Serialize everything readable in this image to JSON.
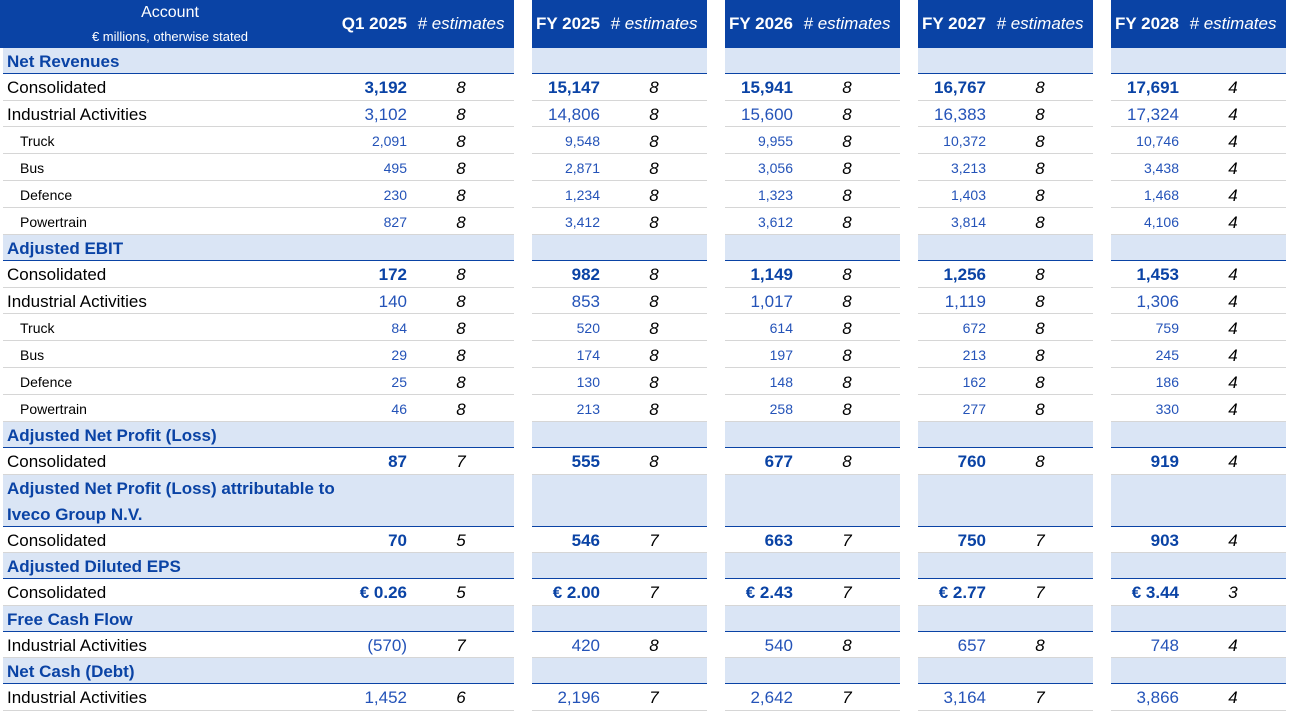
{
  "header": {
    "account_title": "Account",
    "account_subtitle": "€ millions, otherwise stated",
    "periods": [
      {
        "label": "Q1 2025",
        "estimates_label": "# estimates"
      },
      {
        "label": "FY 2025",
        "estimates_label": "# estimates"
      },
      {
        "label": "FY 2026",
        "estimates_label": "# estimates"
      },
      {
        "label": "FY 2027",
        "estimates_label": "# estimates"
      },
      {
        "label": "FY 2028",
        "estimates_label": "# estimates"
      }
    ]
  },
  "colors": {
    "header_bg": "#0a43a5",
    "section_band": "#dae5f5",
    "value_text": "#2453b8",
    "section_text": "#0a43a5"
  },
  "rows": [
    {
      "kind": "section",
      "label": "Net Revenues"
    },
    {
      "kind": "main",
      "label": "Consolidated",
      "bold": true,
      "cells": [
        [
          "3,192",
          "8"
        ],
        [
          "15,147",
          "8"
        ],
        [
          "15,941",
          "8"
        ],
        [
          "16,767",
          "8"
        ],
        [
          "17,691",
          "4"
        ]
      ]
    },
    {
      "kind": "main",
      "label": "Industrial Activities",
      "cells": [
        [
          "3,102",
          "8"
        ],
        [
          "14,806",
          "8"
        ],
        [
          "15,600",
          "8"
        ],
        [
          "16,383",
          "8"
        ],
        [
          "17,324",
          "4"
        ]
      ]
    },
    {
      "kind": "sub",
      "label": "Truck",
      "cells": [
        [
          "2,091",
          "8"
        ],
        [
          "9,548",
          "8"
        ],
        [
          "9,955",
          "8"
        ],
        [
          "10,372",
          "8"
        ],
        [
          "10,746",
          "4"
        ]
      ]
    },
    {
      "kind": "sub",
      "label": "Bus",
      "cells": [
        [
          "495",
          "8"
        ],
        [
          "2,871",
          "8"
        ],
        [
          "3,056",
          "8"
        ],
        [
          "3,213",
          "8"
        ],
        [
          "3,438",
          "4"
        ]
      ]
    },
    {
      "kind": "sub",
      "label": "Defence",
      "cells": [
        [
          "230",
          "8"
        ],
        [
          "1,234",
          "8"
        ],
        [
          "1,323",
          "8"
        ],
        [
          "1,403",
          "8"
        ],
        [
          "1,468",
          "4"
        ]
      ]
    },
    {
      "kind": "sub",
      "label": "Powertrain",
      "cells": [
        [
          "827",
          "8"
        ],
        [
          "3,412",
          "8"
        ],
        [
          "3,612",
          "8"
        ],
        [
          "3,814",
          "8"
        ],
        [
          "4,106",
          "4"
        ]
      ]
    },
    {
      "kind": "section",
      "label": "Adjusted EBIT"
    },
    {
      "kind": "main",
      "label": "Consolidated",
      "bold": true,
      "cells": [
        [
          "172",
          "8"
        ],
        [
          "982",
          "8"
        ],
        [
          "1,149",
          "8"
        ],
        [
          "1,256",
          "8"
        ],
        [
          "1,453",
          "4"
        ]
      ]
    },
    {
      "kind": "main",
      "label": "Industrial Activities",
      "cells": [
        [
          "140",
          "8"
        ],
        [
          "853",
          "8"
        ],
        [
          "1,017",
          "8"
        ],
        [
          "1,119",
          "8"
        ],
        [
          "1,306",
          "4"
        ]
      ]
    },
    {
      "kind": "sub",
      "label": "Truck",
      "cells": [
        [
          "84",
          "8"
        ],
        [
          "520",
          "8"
        ],
        [
          "614",
          "8"
        ],
        [
          "672",
          "8"
        ],
        [
          "759",
          "4"
        ]
      ]
    },
    {
      "kind": "sub",
      "label": "Bus",
      "cells": [
        [
          "29",
          "8"
        ],
        [
          "174",
          "8"
        ],
        [
          "197",
          "8"
        ],
        [
          "213",
          "8"
        ],
        [
          "245",
          "4"
        ]
      ]
    },
    {
      "kind": "sub",
      "label": "Defence",
      "cells": [
        [
          "25",
          "8"
        ],
        [
          "130",
          "8"
        ],
        [
          "148",
          "8"
        ],
        [
          "162",
          "8"
        ],
        [
          "186",
          "4"
        ]
      ]
    },
    {
      "kind": "sub",
      "label": "Powertrain",
      "cells": [
        [
          "46",
          "8"
        ],
        [
          "213",
          "8"
        ],
        [
          "258",
          "8"
        ],
        [
          "277",
          "8"
        ],
        [
          "330",
          "4"
        ]
      ]
    },
    {
      "kind": "section",
      "label": "Adjusted Net Profit (Loss)"
    },
    {
      "kind": "main",
      "label": "Consolidated",
      "bold": true,
      "cells": [
        [
          "87",
          "7"
        ],
        [
          "555",
          "8"
        ],
        [
          "677",
          "8"
        ],
        [
          "760",
          "8"
        ],
        [
          "919",
          "4"
        ]
      ]
    },
    {
      "kind": "section2",
      "label": "Adjusted Net Profit (Loss) attributable to",
      "label2": "Iveco Group N.V."
    },
    {
      "kind": "main",
      "label": "Consolidated",
      "bold": true,
      "cells": [
        [
          "70",
          "5"
        ],
        [
          "546",
          "7"
        ],
        [
          "663",
          "7"
        ],
        [
          "750",
          "7"
        ],
        [
          "903",
          "4"
        ]
      ]
    },
    {
      "kind": "section",
      "label": "Adjusted Diluted EPS"
    },
    {
      "kind": "main",
      "label": "Consolidated",
      "bold": true,
      "cells": [
        [
          "€ 0.26",
          "5"
        ],
        [
          "€ 2.00",
          "7"
        ],
        [
          "€ 2.43",
          "7"
        ],
        [
          "€ 2.77",
          "7"
        ],
        [
          "€ 3.44",
          "3"
        ]
      ]
    },
    {
      "kind": "section",
      "label": "Free Cash Flow"
    },
    {
      "kind": "main",
      "label": "Industrial Activities",
      "cells": [
        [
          "(570)",
          "7"
        ],
        [
          "420",
          "8"
        ],
        [
          "540",
          "8"
        ],
        [
          "657",
          "8"
        ],
        [
          "748",
          "4"
        ]
      ]
    },
    {
      "kind": "section",
      "label": "Net Cash (Debt)"
    },
    {
      "kind": "main",
      "label": "Industrial Activities",
      "cells": [
        [
          "1,452",
          "6"
        ],
        [
          "2,196",
          "7"
        ],
        [
          "2,642",
          "7"
        ],
        [
          "3,164",
          "7"
        ],
        [
          "3,866",
          "4"
        ]
      ]
    }
  ]
}
